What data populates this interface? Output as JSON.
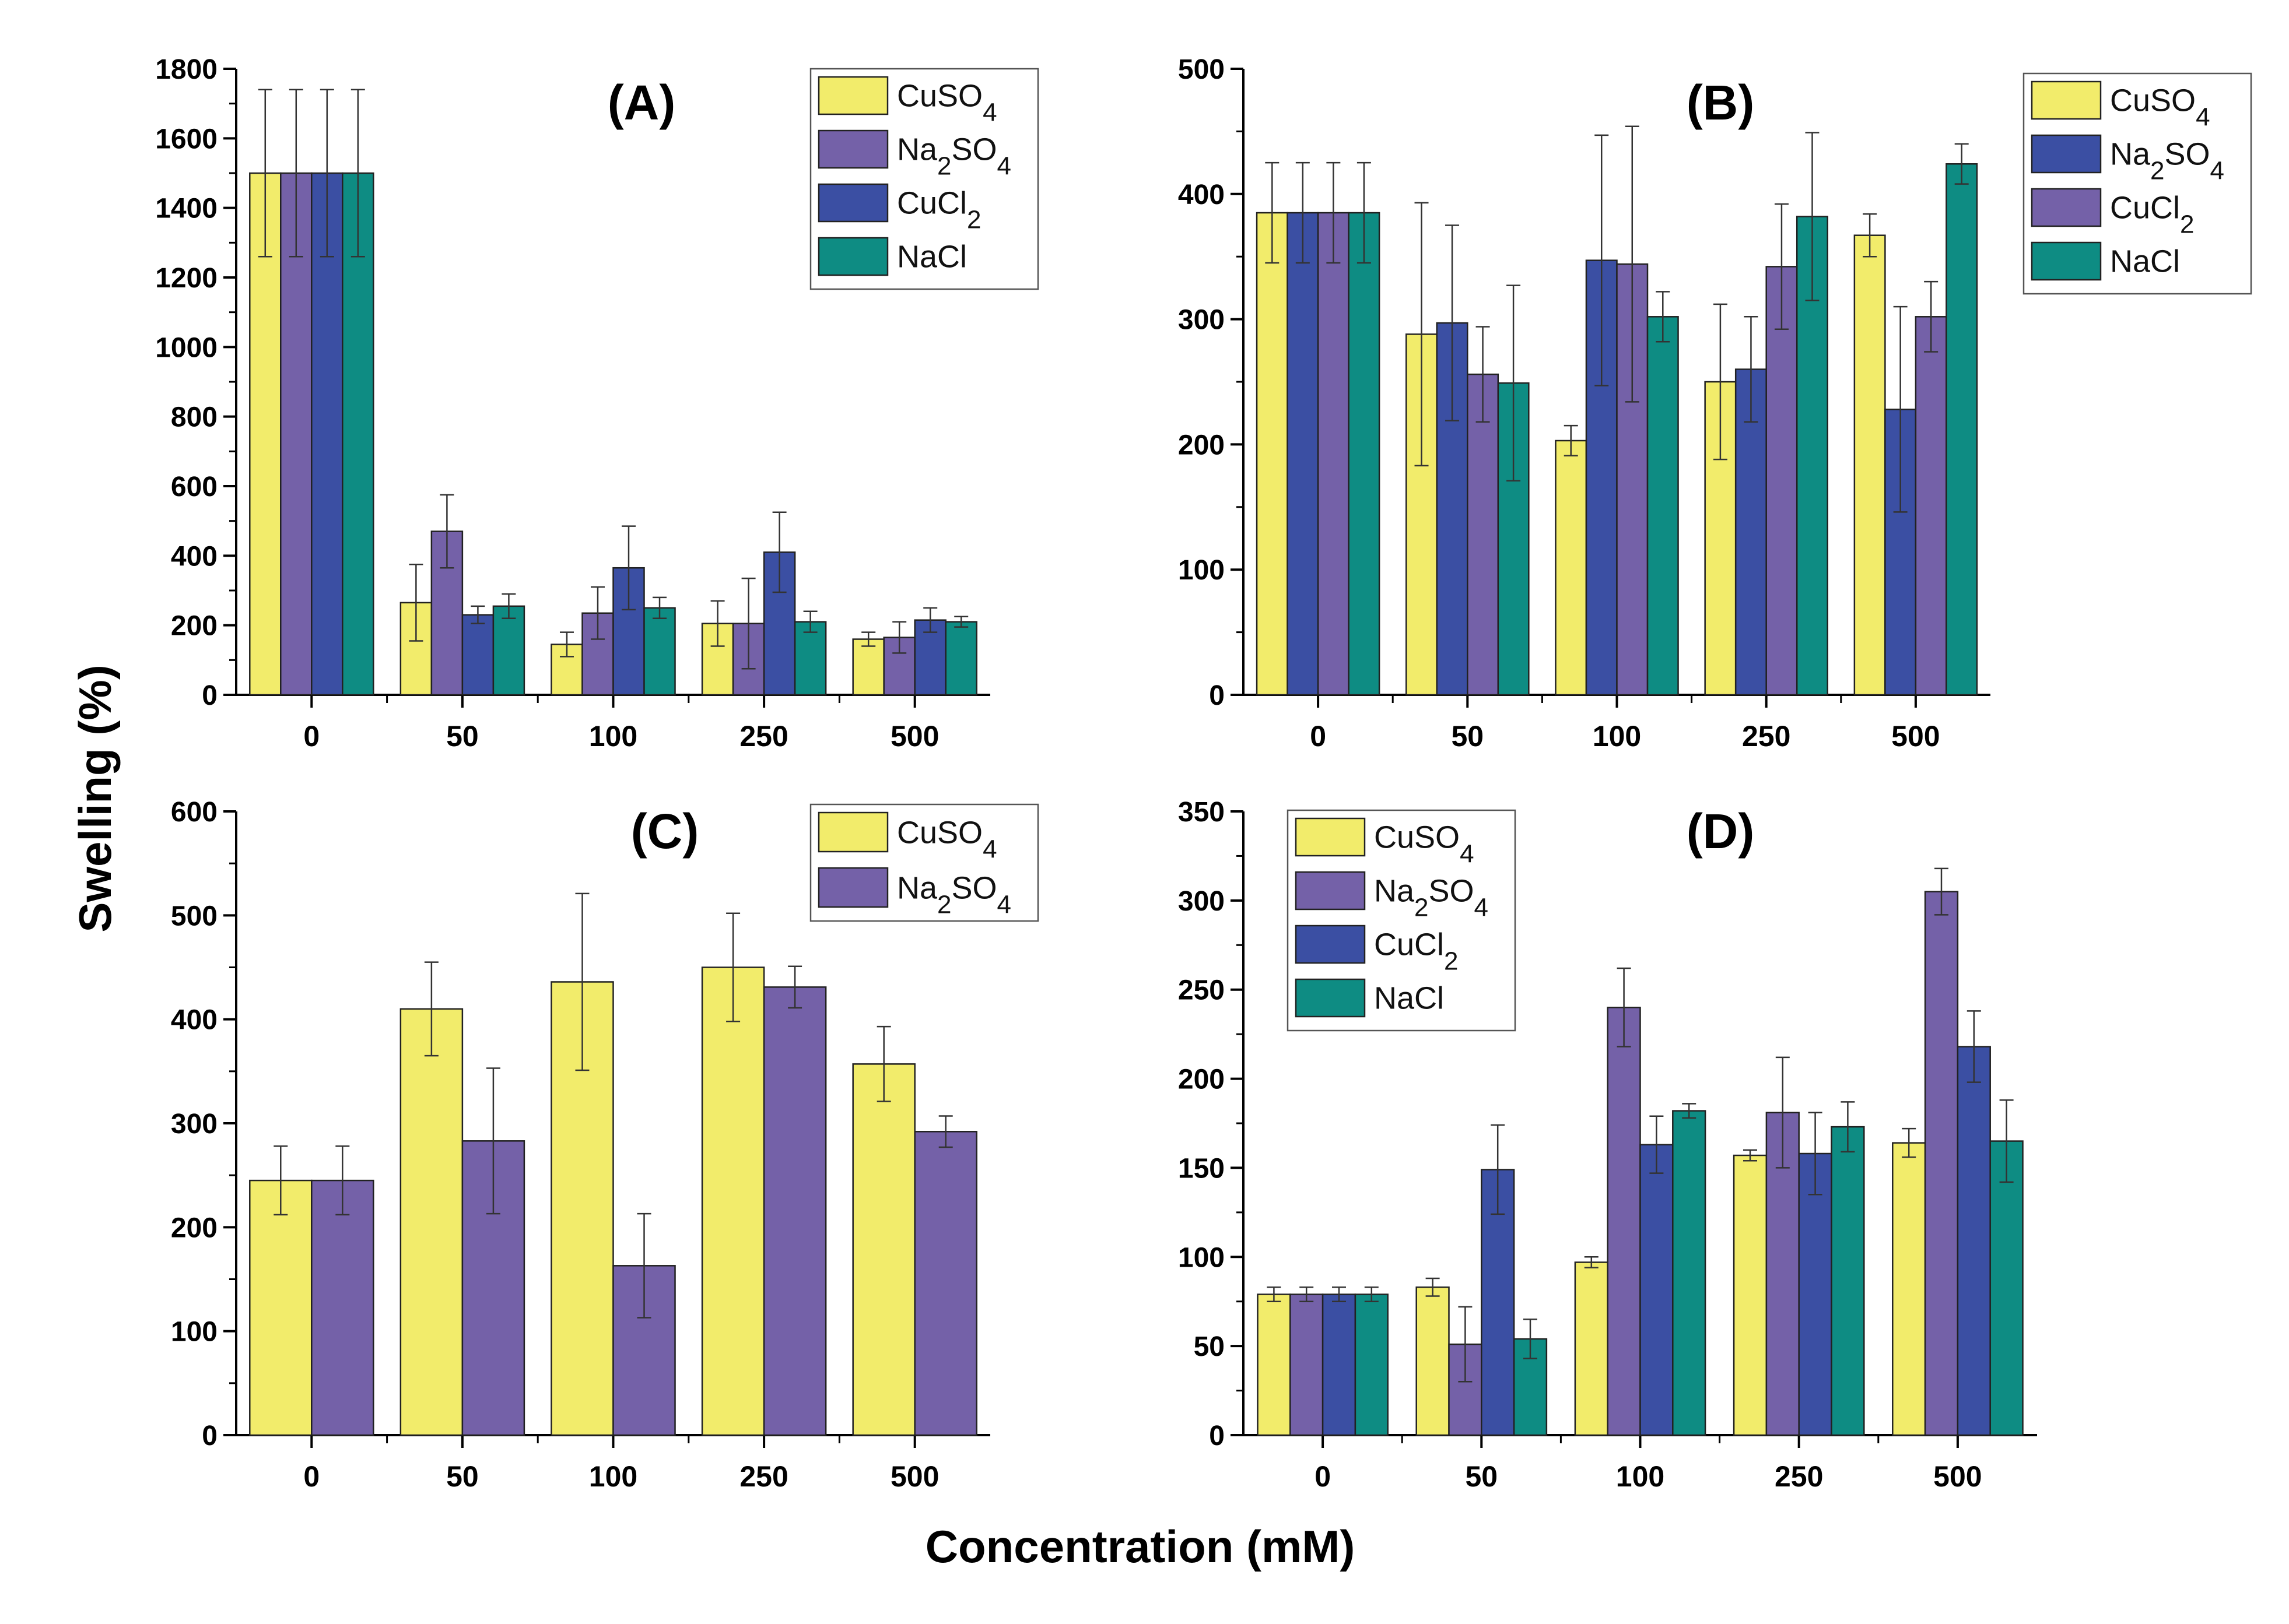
{
  "figure": {
    "ylabel": "Swelling (%)",
    "xlabel": "Concentration (mM)",
    "colors": {
      "yellow": "#F2EC6B",
      "purple": "#7461A8",
      "blue": "#3B4FA3",
      "teal": "#0E8C83",
      "axis": "#000000",
      "errorbar": "#333333"
    }
  },
  "chart_data": [
    {
      "id": "A",
      "type": "bar",
      "title": "(A)",
      "categories": [
        "0",
        "50",
        "100",
        "250",
        "500"
      ],
      "ylim": [
        0,
        1800
      ],
      "yticks": [
        0,
        200,
        400,
        600,
        800,
        1000,
        1200,
        1400,
        1600,
        1800
      ],
      "legend": {
        "position": "top-right"
      },
      "series": [
        {
          "name": "CuSO4",
          "label_main": "CuSO",
          "label_sub": "4",
          "label_tail": "",
          "color": "yellow",
          "values": [
            1500,
            265,
            145,
            205,
            160
          ],
          "errors": [
            240,
            110,
            35,
            65,
            20
          ]
        },
        {
          "name": "Na2SO4",
          "label_main": "Na",
          "label_sub": "2",
          "label_tail": "SO",
          "label_sub2": "4",
          "color": "purple",
          "values": [
            1500,
            470,
            235,
            205,
            165
          ],
          "errors": [
            240,
            105,
            75,
            130,
            45
          ]
        },
        {
          "name": "CuCl2",
          "label_main": "CuCl",
          "label_sub": "2",
          "label_tail": "",
          "color": "blue",
          "values": [
            1500,
            230,
            365,
            410,
            215
          ],
          "errors": [
            240,
            25,
            120,
            115,
            35
          ]
        },
        {
          "name": "NaCl",
          "label_main": "NaCl",
          "label_sub": "",
          "label_tail": "",
          "color": "teal",
          "values": [
            1500,
            255,
            250,
            210,
            210
          ],
          "errors": [
            240,
            35,
            30,
            30,
            15
          ]
        }
      ]
    },
    {
      "id": "B",
      "type": "bar",
      "title": "(B)",
      "categories": [
        "0",
        "50",
        "100",
        "250",
        "500"
      ],
      "ylim": [
        0,
        500
      ],
      "yticks": [
        0,
        100,
        200,
        300,
        400,
        500
      ],
      "legend": {
        "position": "top-right"
      },
      "series": [
        {
          "name": "CuSO4",
          "label_main": "CuSO",
          "label_sub": "4",
          "label_tail": "",
          "color": "yellow",
          "values": [
            385,
            288,
            203,
            250,
            367
          ],
          "errors": [
            40,
            105,
            12,
            62,
            17
          ]
        },
        {
          "name": "Na2SO4",
          "label_main": "Na",
          "label_sub": "2",
          "label_tail": "SO",
          "label_sub2": "4",
          "color": "blue",
          "values": [
            385,
            297,
            347,
            260,
            228
          ],
          "errors": [
            40,
            78,
            100,
            42,
            82
          ]
        },
        {
          "name": "CuCl2",
          "label_main": "CuCl",
          "label_sub": "2",
          "label_tail": "",
          "color": "purple",
          "values": [
            385,
            256,
            344,
            342,
            302
          ],
          "errors": [
            40,
            38,
            110,
            50,
            28
          ]
        },
        {
          "name": "NaCl",
          "label_main": "NaCl",
          "label_sub": "",
          "label_tail": "",
          "color": "teal",
          "values": [
            385,
            249,
            302,
            382,
            424
          ],
          "errors": [
            40,
            78,
            20,
            67,
            16
          ]
        }
      ]
    },
    {
      "id": "C",
      "type": "bar",
      "title": "(C)",
      "categories": [
        "0",
        "50",
        "100",
        "250",
        "500"
      ],
      "ylim": [
        0,
        600
      ],
      "yticks": [
        0,
        100,
        200,
        300,
        400,
        500,
        600
      ],
      "legend": {
        "position": "top-right"
      },
      "series": [
        {
          "name": "CuSO4",
          "label_main": "CuSO",
          "label_sub": "4",
          "label_tail": "",
          "color": "yellow",
          "values": [
            245,
            410,
            436,
            450,
            357
          ],
          "errors": [
            33,
            45,
            85,
            52,
            36
          ]
        },
        {
          "name": "Na2SO4",
          "label_main": "Na",
          "label_sub": "2",
          "label_tail": "SO",
          "label_sub2": "4",
          "color": "purple",
          "values": [
            245,
            283,
            163,
            431,
            292
          ],
          "errors": [
            33,
            70,
            50,
            20,
            15
          ]
        }
      ]
    },
    {
      "id": "D",
      "type": "bar",
      "title": "(D)",
      "categories": [
        "0",
        "50",
        "100",
        "250",
        "500"
      ],
      "ylim": [
        0,
        350
      ],
      "yticks": [
        0,
        50,
        100,
        150,
        200,
        250,
        300,
        350
      ],
      "legend": {
        "position": "top-left"
      },
      "series": [
        {
          "name": "CuSO4",
          "label_main": "CuSO",
          "label_sub": "4",
          "label_tail": "",
          "color": "yellow",
          "values": [
            79,
            83,
            97,
            157,
            164
          ],
          "errors": [
            4,
            5,
            3,
            3,
            8
          ]
        },
        {
          "name": "Na2SO4",
          "label_main": "Na",
          "label_sub": "2",
          "label_tail": "SO",
          "label_sub2": "4",
          "color": "purple",
          "values": [
            79,
            51,
            240,
            181,
            305
          ],
          "errors": [
            4,
            21,
            22,
            31,
            13
          ]
        },
        {
          "name": "CuCl2",
          "label_main": "CuCl",
          "label_sub": "2",
          "label_tail": "",
          "color": "blue",
          "values": [
            79,
            149,
            163,
            158,
            218
          ],
          "errors": [
            4,
            25,
            16,
            23,
            20
          ]
        },
        {
          "name": "NaCl",
          "label_main": "NaCl",
          "label_sub": "",
          "label_tail": "",
          "color": "teal",
          "values": [
            79,
            54,
            182,
            173,
            165
          ],
          "errors": [
            4,
            11,
            4,
            14,
            23
          ]
        }
      ]
    }
  ]
}
